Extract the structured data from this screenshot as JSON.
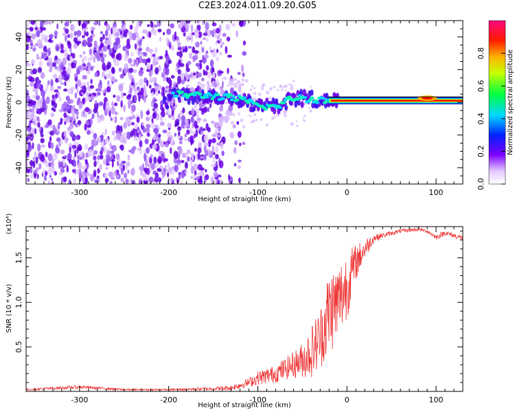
{
  "title": "C2E3.2024.011.09.20.G05",
  "colors": {
    "snr_line": "#ee3333",
    "spectrogram_base": "#6a00e8",
    "frame": "#000000"
  },
  "chart_data": [
    {
      "type": "heatmap",
      "name": "spectrogram",
      "xlabel": "Height of straight line (km)",
      "ylabel": "Frequency (Hz)",
      "xlim": [
        -360,
        130
      ],
      "ylim": [
        -50,
        50
      ],
      "xticks": [
        -300,
        -200,
        -100,
        0,
        100
      ],
      "yticks": [
        -40,
        -20,
        0,
        20,
        40
      ],
      "colorbar": {
        "label": "Normalized spectral amplitude",
        "range": [
          0.0,
          1.0
        ],
        "ticks": [
          0.0,
          0.2,
          0.4,
          0.6,
          0.8
        ],
        "tick_labels": [
          "0.0",
          "0.2",
          "0.4",
          "0.6",
          "0.8"
        ],
        "colormap": "rainbow (white-violet-blue-cyan-green-yellow-red-magenta)"
      },
      "features": {
        "noise_band_x": [
          -360,
          -140
        ],
        "signal_track": [
          {
            "x": -200,
            "freq": 5
          },
          {
            "x": -150,
            "freq": 4
          },
          {
            "x": -120,
            "freq": 2
          },
          {
            "x": -100,
            "freq": -2
          },
          {
            "x": -80,
            "freq": -3
          },
          {
            "x": -60,
            "freq": 3
          },
          {
            "x": -40,
            "freq": 2
          },
          {
            "x": -20,
            "freq": 1
          },
          {
            "x": 0,
            "freq": 1
          },
          {
            "x": 50,
            "freq": 1
          },
          {
            "x": 100,
            "freq": 1
          },
          {
            "x": 130,
            "freq": 1
          }
        ]
      }
    },
    {
      "type": "line",
      "name": "snr",
      "xlabel": "Height of straight line (km)",
      "ylabel": "SNR (10 * v/v)",
      "multiplier_label": "(x10⁴)",
      "xlim": [
        -360,
        130
      ],
      "ylim": [
        0,
        1.85
      ],
      "xticks": [
        -300,
        -200,
        -100,
        0,
        100
      ],
      "yticks": [
        0.5,
        1.0,
        1.5
      ],
      "ytick_labels": [
        "0.5",
        "1.0",
        "1.5"
      ],
      "series": [
        {
          "x": [
            -360,
            -300,
            -250,
            -200,
            -150,
            -130,
            -110,
            -100,
            -80,
            -60,
            -50,
            -40,
            -30,
            -20,
            -10,
            0,
            10,
            20,
            30,
            40,
            60,
            80,
            90,
            100,
            110,
            120,
            130
          ],
          "y": [
            0.02,
            0.05,
            0.02,
            0.02,
            0.03,
            0.04,
            0.1,
            0.15,
            0.2,
            0.3,
            0.35,
            0.45,
            0.6,
            0.9,
            1.0,
            1.2,
            1.45,
            1.6,
            1.72,
            1.75,
            1.8,
            1.82,
            1.8,
            1.73,
            1.78,
            1.75,
            1.72
          ],
          "noise": [
            0.01,
            0.02,
            0.01,
            0.01,
            0.02,
            0.03,
            0.05,
            0.08,
            0.1,
            0.15,
            0.2,
            0.3,
            0.35,
            0.5,
            0.45,
            0.4,
            0.2,
            0.12,
            0.05,
            0.03,
            0.02,
            0.02,
            0.02,
            0.03,
            0.03,
            0.03,
            0.03
          ]
        }
      ]
    }
  ]
}
